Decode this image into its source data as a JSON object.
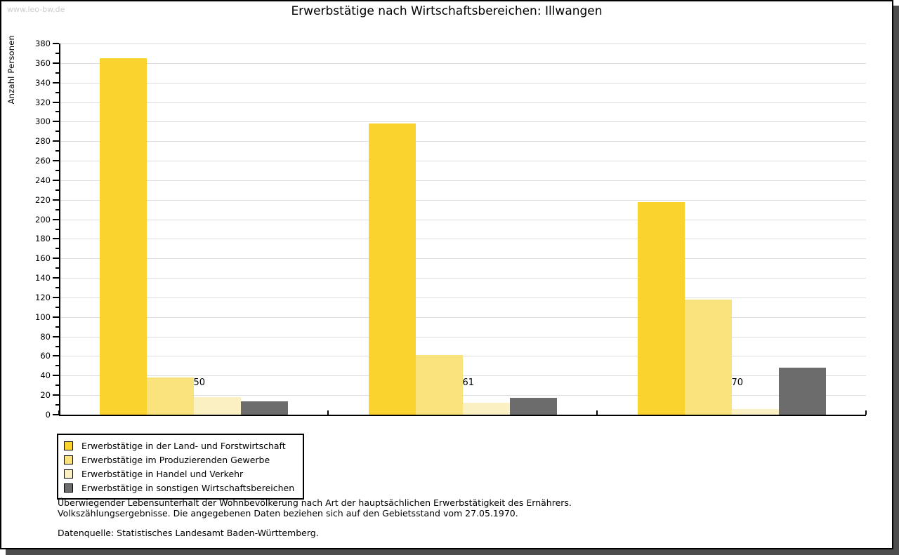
{
  "page": {
    "watermark": "www.leo-bw.de"
  },
  "chart_data": {
    "type": "bar",
    "title": "Erwerbstätige nach Wirtschaftsbereichen: Illwangen",
    "ylabel": "Anzahl Personen",
    "xlabel": "",
    "categories": [
      "1950",
      "1961",
      "1970"
    ],
    "series": [
      {
        "name": "Erwerbstätige in der Land- und Forstwirtschaft",
        "color": "#fbd32e",
        "values": [
          365,
          298,
          218
        ]
      },
      {
        "name": "Erwerbstätige im Produzierenden Gewerbe",
        "color": "#fae37c",
        "values": [
          38,
          61,
          118
        ]
      },
      {
        "name": "Erwerbstätige in Handel und Verkehr",
        "color": "#fbf0c2",
        "values": [
          18,
          12,
          6
        ]
      },
      {
        "name": "Erwerbstätige in sonstigen Wirtschaftsbereichen",
        "color": "#6c6c6c",
        "values": [
          14,
          17,
          48
        ]
      }
    ],
    "ylim": [
      0,
      380
    ],
    "y_major_step": 20,
    "y_minor_step": 10,
    "grid": "horizontal-major",
    "gridline_color": "#dedede",
    "legend_position": "bottom-left"
  },
  "footer": {
    "line1": "Überwiegender Lebensunterhalt der Wohnbevölkerung nach Art der hauptsächlichen Erwerbstätigkeit des Ernährers.",
    "line2": "Volkszählungsergebnisse. Die angegebenen Daten beziehen sich auf den Gebietsstand vom 27.05.1970.",
    "source": "Datenquelle: Statistisches Landesamt Baden-Württemberg."
  }
}
